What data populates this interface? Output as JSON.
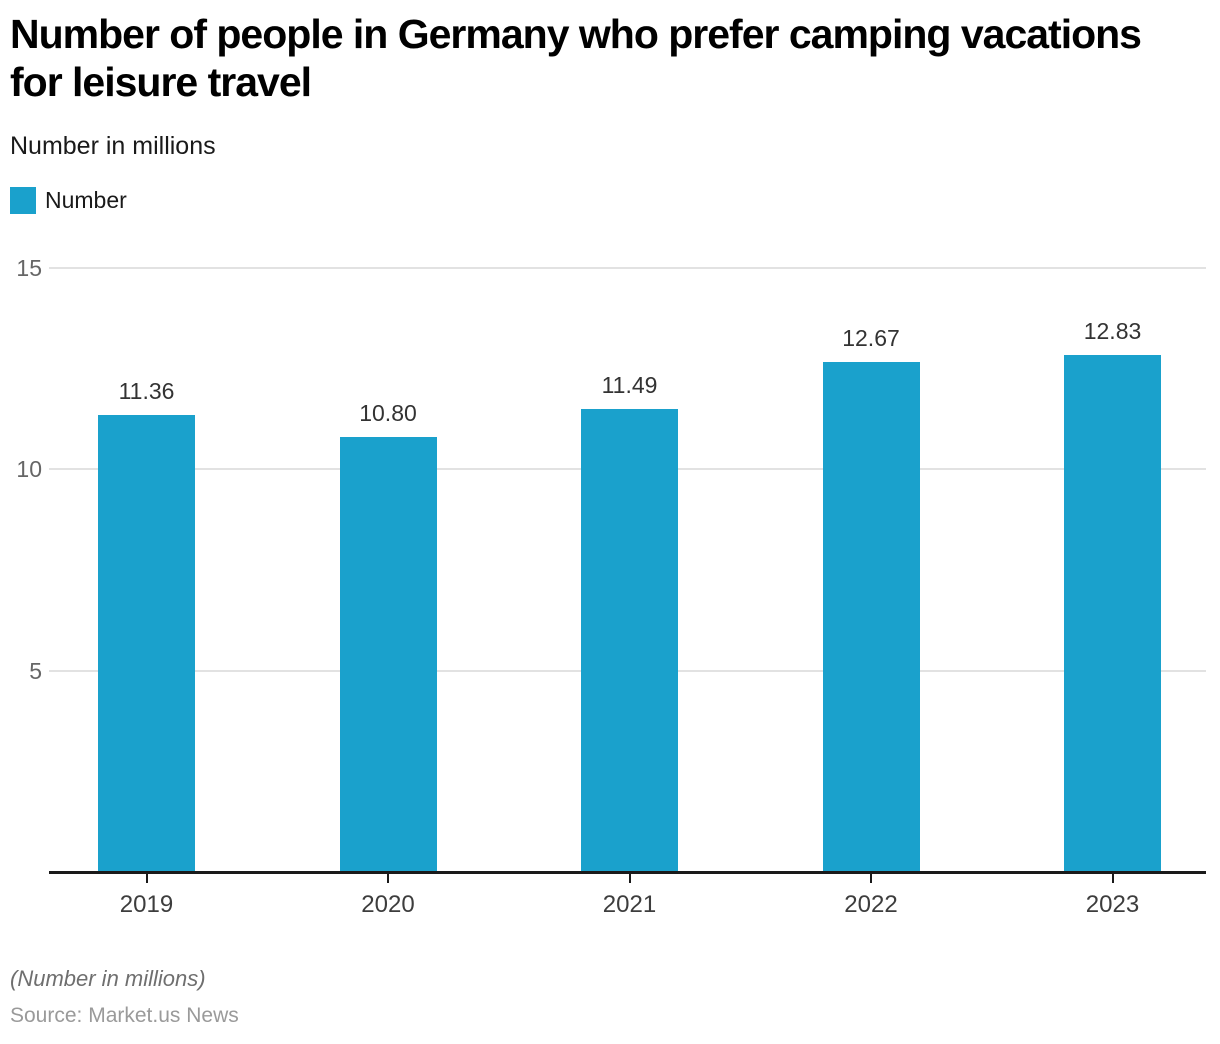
{
  "title_line1": "Number of people in Germany who prefer camping vacations",
  "title_line2": "for leisure travel",
  "subtitle": "Number in millions",
  "legend": {
    "label": "Number",
    "color": "#1aa1cc"
  },
  "footer": {
    "note": "(Number in millions)",
    "source": "Source: Market.us News"
  },
  "colors": {
    "bar": "#1aa1cc",
    "grid": "#e2e2e2",
    "axis": "#1a1a1a",
    "y_tick_label": "#666666",
    "value_label": "#333333"
  },
  "chart_data": {
    "type": "bar",
    "title": "Number of people in Germany who prefer camping vacations for leisure travel",
    "subtitle": "Number in millions",
    "categories": [
      "2019",
      "2020",
      "2021",
      "2022",
      "2023"
    ],
    "series": [
      {
        "name": "Number",
        "values": [
          11.36,
          10.8,
          11.49,
          12.67,
          12.83
        ]
      }
    ],
    "value_labels": [
      "11.36",
      "10.80",
      "11.49",
      "12.67",
      "12.83"
    ],
    "xlabel": "",
    "ylabel": "Number in millions",
    "ylim": [
      0,
      15
    ],
    "yticks": [
      5,
      10,
      15
    ],
    "grid": true,
    "legend_position": "top-left",
    "note": "(Number in millions)",
    "source": "Source: Market.us News"
  }
}
